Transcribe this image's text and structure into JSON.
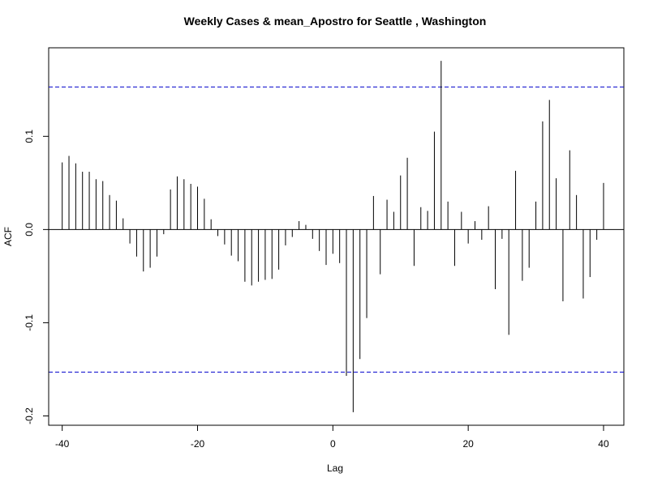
{
  "chart_data": {
    "type": "bar",
    "title": "Weekly Cases & mean_Apostro for Seattle , Washington",
    "xlabel": "Lag",
    "ylabel": "ACF",
    "xlim": [
      -42,
      43
    ],
    "ylim": [
      -0.21,
      0.195
    ],
    "x_ticks": [
      -40,
      -20,
      0,
      20,
      40
    ],
    "y_ticks": [
      -0.2,
      -0.1,
      0.0,
      0.1
    ],
    "y_tick_labels": [
      "-0.2",
      "-0.1",
      "0.0",
      "0.1"
    ],
    "x_tick_labels": [
      "-40",
      "-20",
      "0",
      "20",
      "40"
    ],
    "confidence_band": 0.153,
    "confidence_color": "#0000cc",
    "bar_color": "#000000",
    "grid": false,
    "x": [
      -40,
      -39,
      -38,
      -37,
      -36,
      -35,
      -34,
      -33,
      -32,
      -31,
      -30,
      -29,
      -28,
      -27,
      -26,
      -25,
      -24,
      -23,
      -22,
      -21,
      -20,
      -19,
      -18,
      -17,
      -16,
      -15,
      -14,
      -13,
      -12,
      -11,
      -10,
      -9,
      -8,
      -7,
      -6,
      -5,
      -4,
      -3,
      -2,
      -1,
      0,
      1,
      2,
      3,
      4,
      5,
      6,
      7,
      8,
      9,
      10,
      11,
      12,
      13,
      14,
      15,
      16,
      17,
      18,
      19,
      20,
      21,
      22,
      23,
      24,
      25,
      26,
      27,
      28,
      29,
      30,
      31,
      32,
      33,
      34,
      35,
      36,
      37,
      38,
      39,
      40
    ],
    "values": [
      0.072,
      0.079,
      0.071,
      0.062,
      0.062,
      0.054,
      0.052,
      0.037,
      0.031,
      0.012,
      -0.015,
      -0.029,
      -0.045,
      -0.041,
      -0.029,
      -0.005,
      0.043,
      0.057,
      0.054,
      0.049,
      0.046,
      0.033,
      0.011,
      -0.007,
      -0.016,
      -0.028,
      -0.034,
      -0.056,
      -0.06,
      -0.056,
      -0.054,
      -0.053,
      -0.043,
      -0.017,
      -0.008,
      0.009,
      0.005,
      -0.01,
      -0.023,
      -0.038,
      -0.026,
      -0.036,
      -0.157,
      -0.196,
      -0.139,
      -0.095,
      0.036,
      -0.048,
      0.032,
      0.019,
      0.058,
      0.077,
      -0.039,
      0.024,
      0.02,
      0.105,
      0.181,
      0.03,
      -0.039,
      0.019,
      -0.015,
      0.009,
      -0.011,
      0.025,
      -0.064,
      -0.01,
      -0.113,
      0.063,
      -0.055,
      -0.041,
      0.03,
      0.116,
      0.139,
      0.055,
      -0.077,
      0.085,
      0.037,
      -0.074,
      -0.051,
      -0.011,
      0.05
    ]
  }
}
